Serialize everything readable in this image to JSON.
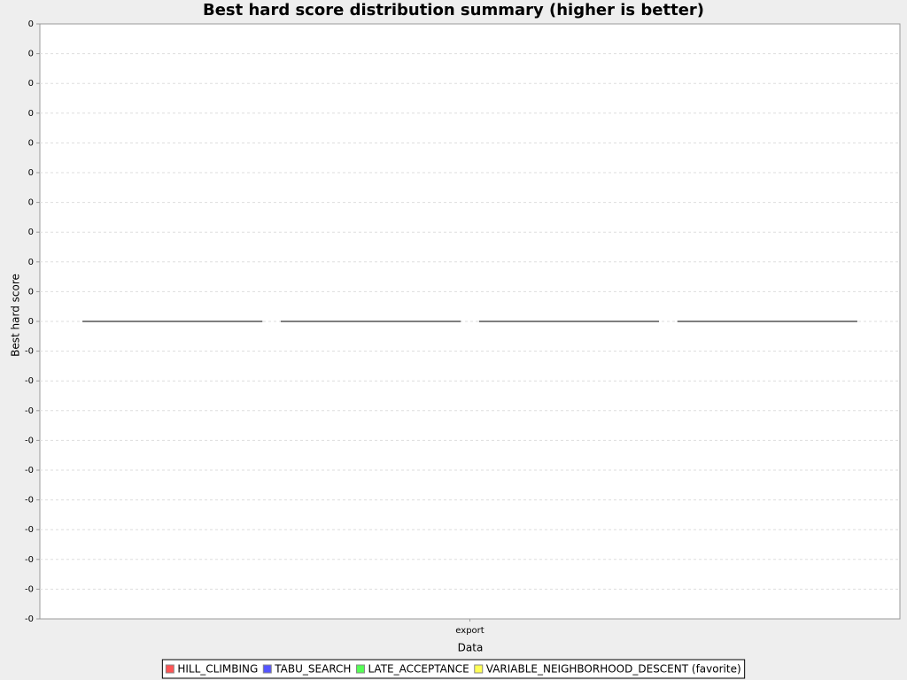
{
  "chart_data": {
    "type": "box",
    "title": "Best hard score distribution summary (higher is better)",
    "x_label": "Data",
    "y_label": "Best hard score",
    "categories": [
      "export"
    ],
    "series": [
      {
        "name": "HILL_CLIMBING",
        "color": "#ff5555",
        "values": [
          0
        ]
      },
      {
        "name": "TABU_SEARCH",
        "color": "#5555ff",
        "values": [
          0
        ]
      },
      {
        "name": "LATE_ACCEPTANCE",
        "color": "#55ff55",
        "values": [
          0
        ]
      },
      {
        "name": "VARIABLE_NEIGHBORHOOD_DESCENT (favorite)",
        "color": "#ffff55",
        "values": [
          0
        ]
      }
    ],
    "ylim": [
      -0.01,
      0.01
    ],
    "yticks": [
      {
        "value": 0.01,
        "label": "0"
      },
      {
        "value": 0.009,
        "label": "0"
      },
      {
        "value": 0.008,
        "label": "0"
      },
      {
        "value": 0.007,
        "label": "0"
      },
      {
        "value": 0.006,
        "label": "0"
      },
      {
        "value": 0.005,
        "label": "0"
      },
      {
        "value": 0.004,
        "label": "0"
      },
      {
        "value": 0.003,
        "label": "0"
      },
      {
        "value": 0.002,
        "label": "0"
      },
      {
        "value": 0.001,
        "label": "0"
      },
      0,
      {
        "value": -0.001,
        "label": "-0"
      },
      {
        "value": -0.002,
        "label": "-0"
      },
      {
        "value": -0.003,
        "label": "-0"
      },
      {
        "value": -0.004,
        "label": "-0"
      },
      {
        "value": -0.005,
        "label": "-0"
      },
      {
        "value": -0.006,
        "label": "-0"
      },
      {
        "value": -0.007,
        "label": "-0"
      },
      {
        "value": -0.008,
        "label": "-0"
      },
      {
        "value": -0.009,
        "label": "-0"
      },
      {
        "value": -0.01,
        "label": "-0"
      }
    ],
    "grid": true
  }
}
